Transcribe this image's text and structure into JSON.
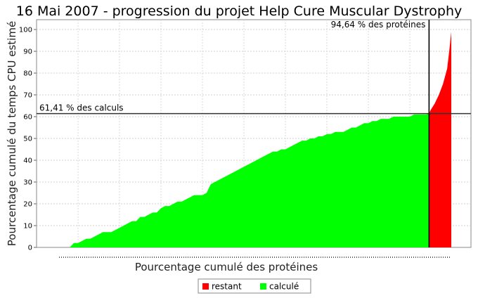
{
  "chart_data": {
    "type": "area",
    "title": "16 Mai 2007 - progression du projet Help Cure Muscular Dystrophy",
    "xlabel": "Pourcentage cumulé des protéines",
    "ylabel": "Pourcentage cumulé du temps CPU estimé",
    "xlim": [
      0,
      100
    ],
    "ylim": [
      0,
      105
    ],
    "y_ticks": [
      0,
      10,
      20,
      30,
      40,
      50,
      60,
      70,
      80,
      90,
      100
    ],
    "x_tick_labels_visible": false,
    "grid": true,
    "legend_position": "bottom",
    "series": [
      {
        "name": "calculé",
        "color": "#00ff00",
        "x": [
          8,
          9,
          10,
          11,
          12,
          13,
          14,
          15,
          16,
          17,
          18,
          19,
          20,
          21,
          22,
          23,
          24,
          25,
          26,
          27,
          28,
          29,
          30,
          31,
          32,
          33,
          34,
          35,
          36,
          37,
          38,
          39,
          40,
          41,
          42,
          43,
          44,
          45,
          46,
          47,
          48,
          49,
          50,
          51,
          52,
          53,
          54,
          55,
          56,
          57,
          58,
          59,
          60,
          61,
          62,
          63,
          64,
          65,
          66,
          67,
          68,
          69,
          70,
          71,
          72,
          73,
          74,
          75,
          76,
          77,
          78,
          79,
          80,
          81,
          82,
          83,
          84,
          85,
          86,
          87,
          88,
          89,
          90,
          91,
          92,
          93,
          94,
          94.64
        ],
        "y": [
          0,
          2,
          2,
          3,
          4,
          4,
          5,
          6,
          7,
          7,
          7,
          8,
          9,
          10,
          11,
          12,
          12,
          14,
          14,
          15,
          16,
          16,
          18,
          19,
          19,
          20,
          21,
          21,
          22,
          23,
          24,
          24,
          24,
          25,
          29,
          30,
          31,
          32,
          33,
          34,
          35,
          36,
          37,
          38,
          39,
          40,
          41,
          42,
          43,
          44,
          44,
          45,
          45,
          46,
          47,
          48,
          49,
          49,
          50,
          50,
          51,
          51,
          52,
          52,
          53,
          53,
          53,
          54,
          55,
          55,
          56,
          57,
          57,
          58,
          58,
          59,
          59,
          59,
          60,
          60,
          60,
          60,
          60,
          61,
          61,
          61,
          61,
          61.41
        ]
      },
      {
        "name": "restant",
        "color": "#ff0000",
        "x": [
          94.64,
          95,
          96,
          97,
          98,
          99,
          99.5,
          100
        ],
        "y": [
          61.41,
          63,
          66,
          70,
          75,
          82,
          90,
          99
        ]
      }
    ],
    "annotations": [
      {
        "text": "61,41 % des calculs",
        "axis": "y",
        "value": 61.41
      },
      {
        "text": "94,64 % des protéines",
        "axis": "x",
        "value": 94.64
      }
    ]
  }
}
